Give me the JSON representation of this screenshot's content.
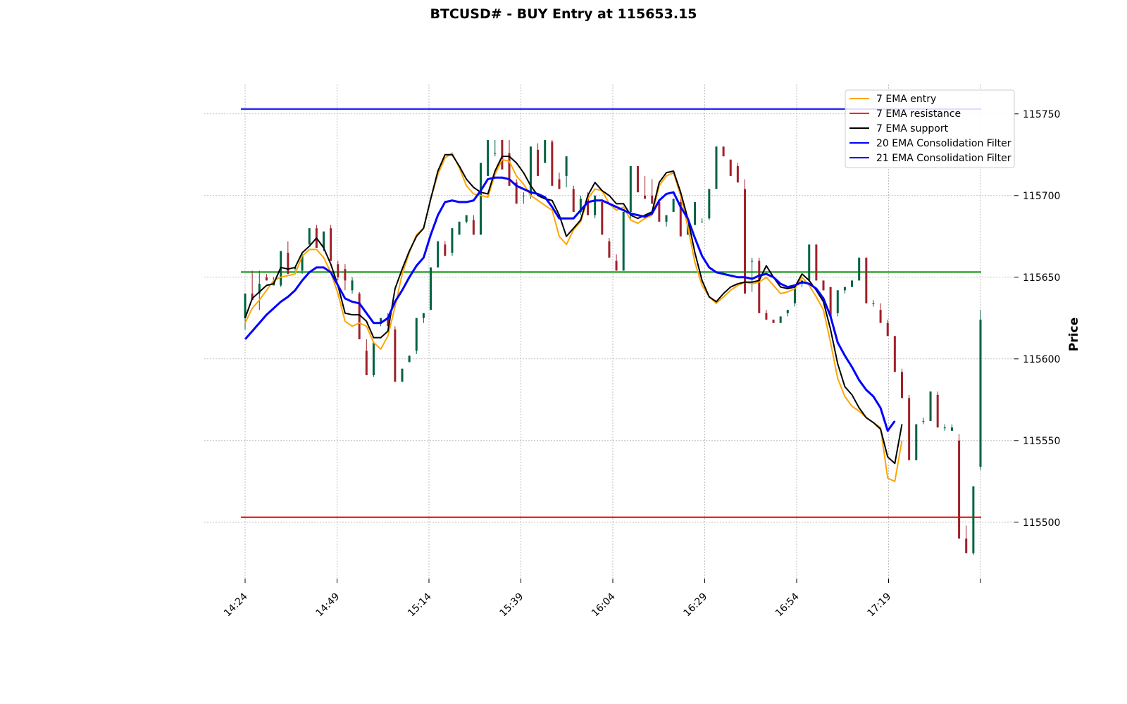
{
  "chart_data": {
    "type": "candlestick",
    "title": "BTCUSD# - BUY Entry at 115653.15",
    "ylabel": "Price",
    "ylim": [
      115465,
      115768
    ],
    "y_ticks": [
      115500,
      115550,
      115600,
      115650,
      115700,
      115750
    ],
    "x_tick_labels": [
      "14:24",
      "14:49",
      "15:14",
      "15:39",
      "16:04",
      "16:29",
      "16:54",
      "17:19",
      ""
    ],
    "grid": true,
    "legend_position": "top-right",
    "levels": {
      "consolidation_top": {
        "value": 115753,
        "color": "#2b2bff"
      },
      "entry": {
        "value": 115653.15,
        "color": "#2ca02c"
      },
      "resistance": {
        "value": 115503,
        "color": "#ff2020"
      }
    },
    "series": [
      {
        "name": "7 EMA entry",
        "color": "#ffa500",
        "values": [
          115622,
          115631,
          115636,
          115642,
          115648,
          115650,
          115651,
          115652,
          115663,
          115667,
          115667,
          115662,
          115653,
          115640,
          115623,
          115620,
          115622,
          115620,
          115610,
          115606,
          115614,
          115632,
          115652,
          115665,
          115676,
          115680,
          115698,
          115713,
          115723,
          115726,
          115717,
          115706,
          115701,
          115700,
          115699,
          115713,
          115722,
          115721,
          115712,
          115707,
          115700,
          115697,
          115694,
          115691,
          115675,
          115670,
          115679,
          115684,
          115698,
          115704,
          115703,
          115695,
          115691,
          115693,
          115685,
          115683,
          115686,
          115688,
          115706,
          115712,
          115714,
          115700,
          115681,
          115659,
          115645,
          115638,
          115634,
          115638,
          115642,
          115645,
          115647,
          115646,
          115647,
          115650,
          115645,
          115640,
          115641,
          115643,
          115650,
          115645,
          115638,
          115630,
          115610,
          115588,
          115577,
          115571,
          115568,
          115564,
          115561,
          115558,
          115527,
          115525,
          115550
        ]
      },
      {
        "name": "7 EMA resistance",
        "color": "#ff2020",
        "values": []
      },
      {
        "name": "7 EMA support",
        "color": "#000000",
        "values": [
          115625,
          115637,
          115641,
          115645,
          115646,
          115656,
          115655,
          115656,
          115665,
          115669,
          115674,
          115668,
          115658,
          115645,
          115628,
          115627,
          115627,
          115623,
          115613,
          115613,
          115617,
          115643,
          115655,
          115666,
          115675,
          115680,
          115698,
          115715,
          115725,
          115725,
          115718,
          115710,
          115705,
          115702,
          115701,
          115715,
          115724,
          115724,
          115720,
          115714,
          115706,
          115700,
          115698,
          115697,
          115688,
          115675,
          115680,
          115685,
          115700,
          115708,
          115703,
          115700,
          115695,
          115695,
          115688,
          115686,
          115688,
          115690,
          115708,
          115714,
          115715,
          115702,
          115686,
          115665,
          115648,
          115638,
          115635,
          115640,
          115644,
          115646,
          115647,
          115647,
          115648,
          115657,
          115650,
          115644,
          115643,
          115644,
          115652,
          115648,
          115642,
          115635,
          115618,
          115597,
          115583,
          115578,
          115570,
          115564,
          115561,
          115557,
          115540,
          115536,
          115560
        ]
      },
      {
        "name": "20 EMA Consolidation Filter",
        "color": "#0000ff",
        "values": []
      },
      {
        "name": "21 EMA Consolidation Filter",
        "color": "#0000ff",
        "values": [
          115612,
          115617,
          115622,
          115627,
          115631,
          115635,
          115638,
          115642,
          115648,
          115653,
          115656,
          115656,
          115653,
          115645,
          115637,
          115635,
          115634,
          115628,
          115622,
          115622,
          115625,
          115635,
          115642,
          115650,
          115657,
          115662,
          115676,
          115688,
          115696,
          115697,
          115696,
          115696,
          115697,
          115703,
          115710,
          115711,
          115711,
          115710,
          115706,
          115704,
          115702,
          115701,
          115699,
          115693,
          115686,
          115686,
          115686,
          115691,
          115696,
          115697,
          115697,
          115695,
          115693,
          115691,
          115689,
          115688,
          115687,
          115689,
          115697,
          115701,
          115702,
          115693,
          115686,
          115674,
          115663,
          115656,
          115653,
          115652,
          115651,
          115650,
          115650,
          115649,
          115651,
          115652,
          115650,
          115646,
          115644,
          115645,
          115647,
          115646,
          115643,
          115637,
          115626,
          115610,
          115602,
          115595,
          115587,
          115581,
          115577,
          115570,
          115556,
          115562
        ]
      }
    ],
    "candles": [
      [
        115625,
        115640,
        115618,
        115640
      ],
      [
        115640,
        115654,
        115636,
        115636
      ],
      [
        115640,
        115654,
        115630,
        115646
      ],
      [
        115650,
        115652,
        115648,
        115648
      ],
      [
        115645,
        115650,
        115645,
        115647
      ],
      [
        115645,
        115666,
        115644,
        115666
      ],
      [
        115665,
        115672,
        115652,
        115652
      ],
      [
        115655,
        115656,
        115654,
        115656
      ],
      [
        115654,
        115664,
        115652,
        115664
      ],
      [
        115670,
        115680,
        115670,
        115680
      ],
      [
        115680,
        115682,
        115668,
        115668
      ],
      [
        115668,
        115678,
        115666,
        115678
      ],
      [
        115680,
        115682,
        115660,
        115660
      ],
      [
        115658,
        115660,
        115648,
        115650
      ],
      [
        115655,
        115658,
        115642,
        115648
      ],
      [
        115642,
        115650,
        115640,
        115648
      ],
      [
        115640,
        115641,
        115612,
        115612
      ],
      [
        115605,
        115612,
        115590,
        115590
      ],
      [
        115590,
        115610,
        115589,
        115610
      ],
      [
        115622,
        115625,
        115620,
        115625
      ],
      [
        115625,
        115628,
        115620,
        115620
      ],
      [
        115618,
        115620,
        115586,
        115586
      ],
      [
        115586,
        115594,
        115586,
        115594
      ],
      [
        115598,
        115602,
        115598,
        115602
      ],
      [
        115605,
        115625,
        115603,
        115625
      ],
      [
        115625,
        115628,
        115622,
        115628
      ],
      [
        115630,
        115656,
        115630,
        115656
      ],
      [
        115656,
        115672,
        115656,
        115672
      ],
      [
        115670,
        115672,
        115663,
        115663
      ],
      [
        115665,
        115680,
        115663,
        115680
      ],
      [
        115676,
        115684,
        115676,
        115684
      ],
      [
        115684,
        115688,
        115683,
        115688
      ],
      [
        115685,
        115688,
        115676,
        115676
      ],
      [
        115676,
        115720,
        115676,
        115720
      ],
      [
        115712,
        115734,
        115712,
        115734
      ],
      [
        115726,
        115734,
        115724,
        115726
      ],
      [
        115734,
        115734,
        115716,
        115716
      ],
      [
        115726,
        115734,
        115706,
        115706
      ],
      [
        115708,
        115710,
        115695,
        115695
      ],
      [
        115700,
        115702,
        115695,
        115700
      ],
      [
        115700,
        115730,
        115698,
        115730
      ],
      [
        115728,
        115732,
        115712,
        115712
      ],
      [
        115720,
        115734,
        115720,
        115734
      ],
      [
        115733,
        115734,
        115706,
        115706
      ],
      [
        115710,
        115714,
        115704,
        115704
      ],
      [
        115712,
        115724,
        115705,
        115724
      ],
      [
        115704,
        115706,
        115690,
        115690
      ],
      [
        115690,
        115700,
        115688,
        115698
      ],
      [
        115700,
        115702,
        115688,
        115688
      ],
      [
        115688,
        115700,
        115686,
        115700
      ],
      [
        115696,
        115698,
        115676,
        115676
      ],
      [
        115672,
        115674,
        115662,
        115662
      ],
      [
        115660,
        115664,
        115654,
        115654
      ],
      [
        115654,
        115690,
        115654,
        115690
      ],
      [
        115690,
        115718,
        115686,
        115718
      ],
      [
        115718,
        115718,
        115702,
        115702
      ],
      [
        115700,
        115712,
        115698,
        115698
      ],
      [
        115700,
        115710,
        115695,
        115695
      ],
      [
        115696,
        115698,
        115684,
        115684
      ],
      [
        115684,
        115688,
        115681,
        115688
      ],
      [
        115690,
        115698,
        115690,
        115698
      ],
      [
        115696,
        115698,
        115675,
        115675
      ],
      [
        115676,
        115682,
        115676,
        115682
      ],
      [
        115682,
        115696,
        115682,
        115696
      ],
      [
        115684,
        115686,
        115684,
        115684
      ],
      [
        115686,
        115704,
        115685,
        115704
      ],
      [
        115704,
        115730,
        115704,
        115730
      ],
      [
        115730,
        115730,
        115724,
        115724
      ],
      [
        115722,
        115722,
        115712,
        115712
      ],
      [
        115718,
        115720,
        115708,
        115708
      ],
      [
        115704,
        115710,
        115640,
        115640
      ],
      [
        115660,
        115662,
        115641,
        115660
      ],
      [
        115660,
        115662,
        115628,
        115628
      ],
      [
        115628,
        115630,
        115624,
        115624
      ],
      [
        115624,
        115624,
        115622,
        115622
      ],
      [
        115622,
        115626,
        115622,
        115626
      ],
      [
        115628,
        115630,
        115626,
        115630
      ],
      [
        115634,
        115644,
        115632,
        115644
      ],
      [
        115646,
        115648,
        115644,
        115648
      ],
      [
        115648,
        115670,
        115648,
        115670
      ],
      [
        115670,
        115670,
        115648,
        115648
      ],
      [
        115648,
        115648,
        115642,
        115642
      ],
      [
        115644,
        115644,
        115626,
        115626
      ],
      [
        115628,
        115642,
        115626,
        115642
      ],
      [
        115642,
        115644,
        115640,
        115644
      ],
      [
        115644,
        115648,
        115644,
        115648
      ],
      [
        115648,
        115662,
        115648,
        115662
      ],
      [
        115662,
        115662,
        115634,
        115634
      ],
      [
        115634,
        115636,
        115632,
        115634
      ],
      [
        115630,
        115634,
        115622,
        115622
      ],
      [
        115622,
        115624,
        115614,
        115614
      ],
      [
        115614,
        115614,
        115592,
        115592
      ],
      [
        115592,
        115594,
        115576,
        115576
      ],
      [
        115576,
        115578,
        115538,
        115538
      ],
      [
        115538,
        115560,
        115538,
        115560
      ],
      [
        115562,
        115564,
        115560,
        115562
      ],
      [
        115562,
        115580,
        115562,
        115580
      ],
      [
        115578,
        115580,
        115558,
        115558
      ],
      [
        115558,
        115560,
        115556,
        115558
      ],
      [
        115556,
        115560,
        115556,
        115558
      ],
      [
        115550,
        115554,
        115490,
        115490
      ],
      [
        115490,
        115498,
        115481,
        115481
      ],
      [
        115481,
        115522,
        115480,
        115522
      ],
      [
        115534,
        115630,
        115532,
        115624
      ]
    ]
  }
}
